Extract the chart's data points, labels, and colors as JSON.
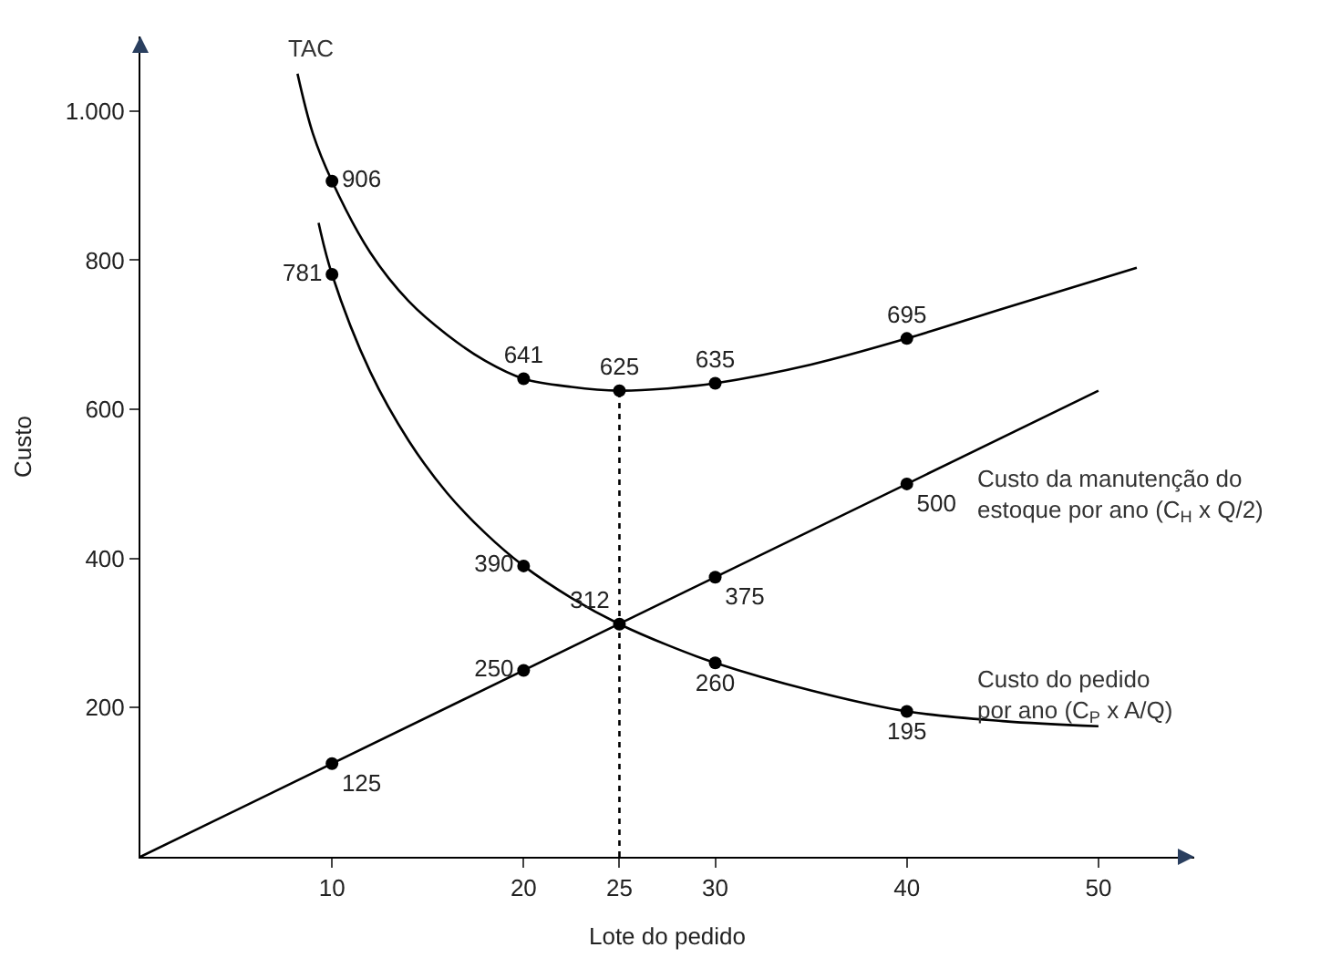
{
  "chart_data": {
    "type": "line",
    "xlabel": "Lote do pedido",
    "ylabel": "Custo",
    "xlim": [
      0,
      55
    ],
    "ylim": [
      0,
      1100
    ],
    "xticks": [
      10,
      20,
      25,
      30,
      40,
      50
    ],
    "yticks": [
      200,
      400,
      600,
      800,
      {
        "value": 1000,
        "label": "1.000"
      }
    ],
    "legend": false,
    "marker": "none",
    "series": [
      {
        "name": "TAC",
        "color": "#000000",
        "x": [
          8.2,
          9,
          10,
          12,
          14,
          16,
          18,
          20,
          22.5,
          25,
          27.5,
          30,
          35,
          40,
          45,
          52
        ],
        "values": [
          1050,
          970,
          906,
          810,
          745,
          700,
          665,
          641,
          630,
          625,
          628,
          635,
          660,
          695,
          735,
          790
        ]
      },
      {
        "name": "Custo da manutenção do\nestoque por ano (C$_{H}$ x Q/2)",
        "color": "#000000",
        "x": [
          0,
          50
        ],
        "values": [
          0,
          625
        ]
      },
      {
        "name": "Custo do pedido\npor ano (C$_{P}$ x A/Q)",
        "color": "#000000",
        "x": [
          9.3,
          10,
          12,
          14,
          16,
          18,
          20,
          22.5,
          25,
          27.5,
          30,
          35,
          40,
          45,
          50
        ],
        "values": [
          850,
          781,
          650,
          558,
          488,
          434,
          390,
          347,
          312,
          284,
          260,
          223,
          195,
          182,
          175
        ]
      },
      {
        "type": "scatter",
        "marker": "circle",
        "color": "#000000",
        "x": [
          10,
          20,
          25,
          30,
          40
        ],
        "values": [
          906,
          641,
          625,
          635,
          695
        ],
        "value_labels": [
          "906",
          "641",
          "625",
          "635",
          "695"
        ]
      },
      {
        "type": "scatter",
        "marker": "circle",
        "color": "#000000",
        "x": [
          10,
          20,
          25,
          30,
          40
        ],
        "values": [
          125,
          250,
          312,
          375,
          500
        ],
        "value_labels": [
          "125",
          "250",
          "312",
          "375",
          "500"
        ]
      },
      {
        "type": "scatter",
        "marker": "circle",
        "color": "#000000",
        "x": [
          10,
          20,
          30,
          40
        ],
        "values": [
          781,
          390,
          260,
          195
        ],
        "value_labels": [
          "781",
          "390",
          "260",
          "195"
        ]
      },
      {
        "type": "line",
        "line_style": "dotted",
        "color": "#000000",
        "x": [
          25,
          25
        ],
        "values": [
          0,
          625
        ]
      }
    ]
  }
}
